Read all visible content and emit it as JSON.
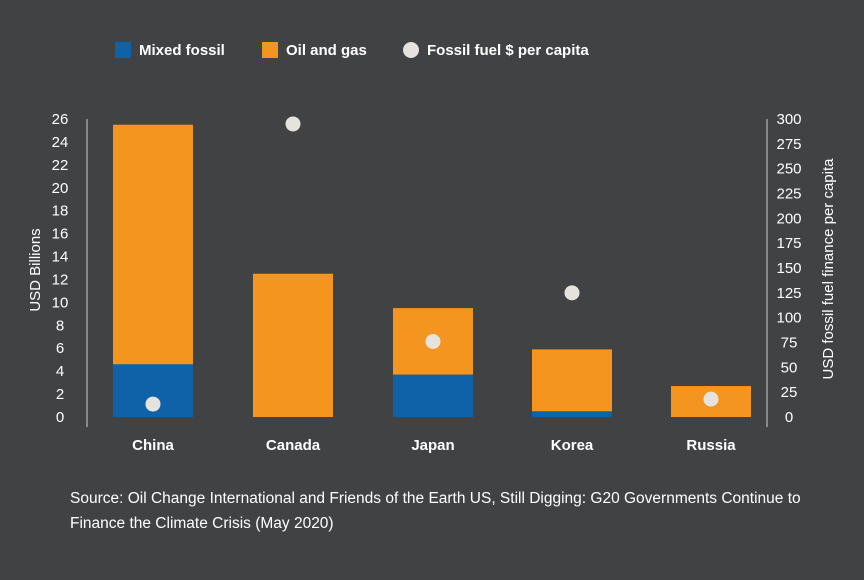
{
  "chart_data": {
    "type": "bar",
    "categories": [
      "China",
      "Canada",
      "Japan",
      "Korea",
      "Russia"
    ],
    "series": [
      {
        "name": "Mixed fossil",
        "axis": "left",
        "stacked": true,
        "color": "#0f62a8",
        "values": [
          4.6,
          0,
          3.7,
          0.5,
          0
        ]
      },
      {
        "name": "Oil and gas",
        "axis": "left",
        "stacked": true,
        "color": "#f3951e",
        "values": [
          20.9,
          12.5,
          5.8,
          5.4,
          2.7
        ]
      },
      {
        "name": "Fossil fuel $ per capita",
        "axis": "right",
        "type": "scatter",
        "color": "#e6e3df",
        "values": [
          13,
          295,
          76,
          125,
          18
        ]
      }
    ],
    "ylabel": "USD Billions",
    "y2label": "USD fossil fuel finance per capita",
    "ylim": [
      0,
      26
    ],
    "y2lim": [
      0,
      300
    ],
    "yticks": [
      0,
      2,
      4,
      6,
      8,
      10,
      12,
      14,
      16,
      18,
      20,
      22,
      24,
      26
    ],
    "y2ticks": [
      0,
      25,
      50,
      75,
      100,
      125,
      150,
      175,
      200,
      225,
      250,
      275,
      300
    ],
    "legend_position": "top-left"
  },
  "source": "Source: Oil Change International and Friends of the Earth US, Still Digging: G20 Governments Continue to Finance the Climate Crisis (May 2020)"
}
